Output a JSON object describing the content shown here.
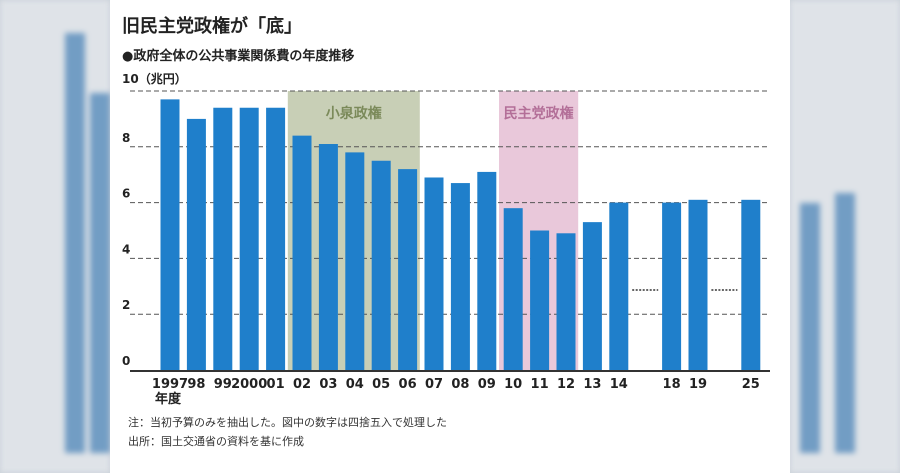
{
  "title": "旧民主党政権が「底」",
  "subtitle": "●政府全体の公共事業関係費の年度推移",
  "notes": {
    "note": "注：当初予算のみを抽出した。図中の数字は四捨五入で処理した",
    "source": "出所：国土交通省の資料を基に作成"
  },
  "colors": {
    "bar": "#1f7fcb",
    "koizumi_bg": "#c8cfb6",
    "koizumi_text": "#7b8a5a",
    "dpj_bg": "#e9c8da",
    "dpj_text": "#b36f98"
  },
  "chart_data": {
    "type": "bar",
    "title": "旧民主党政権が「底」",
    "ylabel": "10（兆円）",
    "xlabel": "年度",
    "ylim": [
      0,
      10
    ],
    "yticks": [
      "0",
      "2",
      "4",
      "6",
      "8",
      "10"
    ],
    "yunit": "（兆円）",
    "grid": true,
    "categories": [
      "1997",
      "98",
      "99",
      "2000",
      "01",
      "02",
      "03",
      "04",
      "05",
      "06",
      "07",
      "08",
      "09",
      "10",
      "11",
      "12",
      "13",
      "14",
      "18",
      "19",
      "25"
    ],
    "values": [
      9.7,
      9.0,
      9.4,
      9.4,
      9.4,
      8.4,
      8.1,
      7.8,
      7.5,
      7.2,
      6.9,
      6.7,
      7.1,
      5.8,
      5.0,
      4.9,
      5.3,
      6.0,
      6.0,
      6.1,
      6.1
    ],
    "gaps_after": [
      "14",
      "19"
    ],
    "annotations": [
      {
        "label": "小泉政権",
        "from": "02",
        "to": "06"
      },
      {
        "label": "民主党政権",
        "from": "10",
        "to": "12"
      }
    ]
  }
}
